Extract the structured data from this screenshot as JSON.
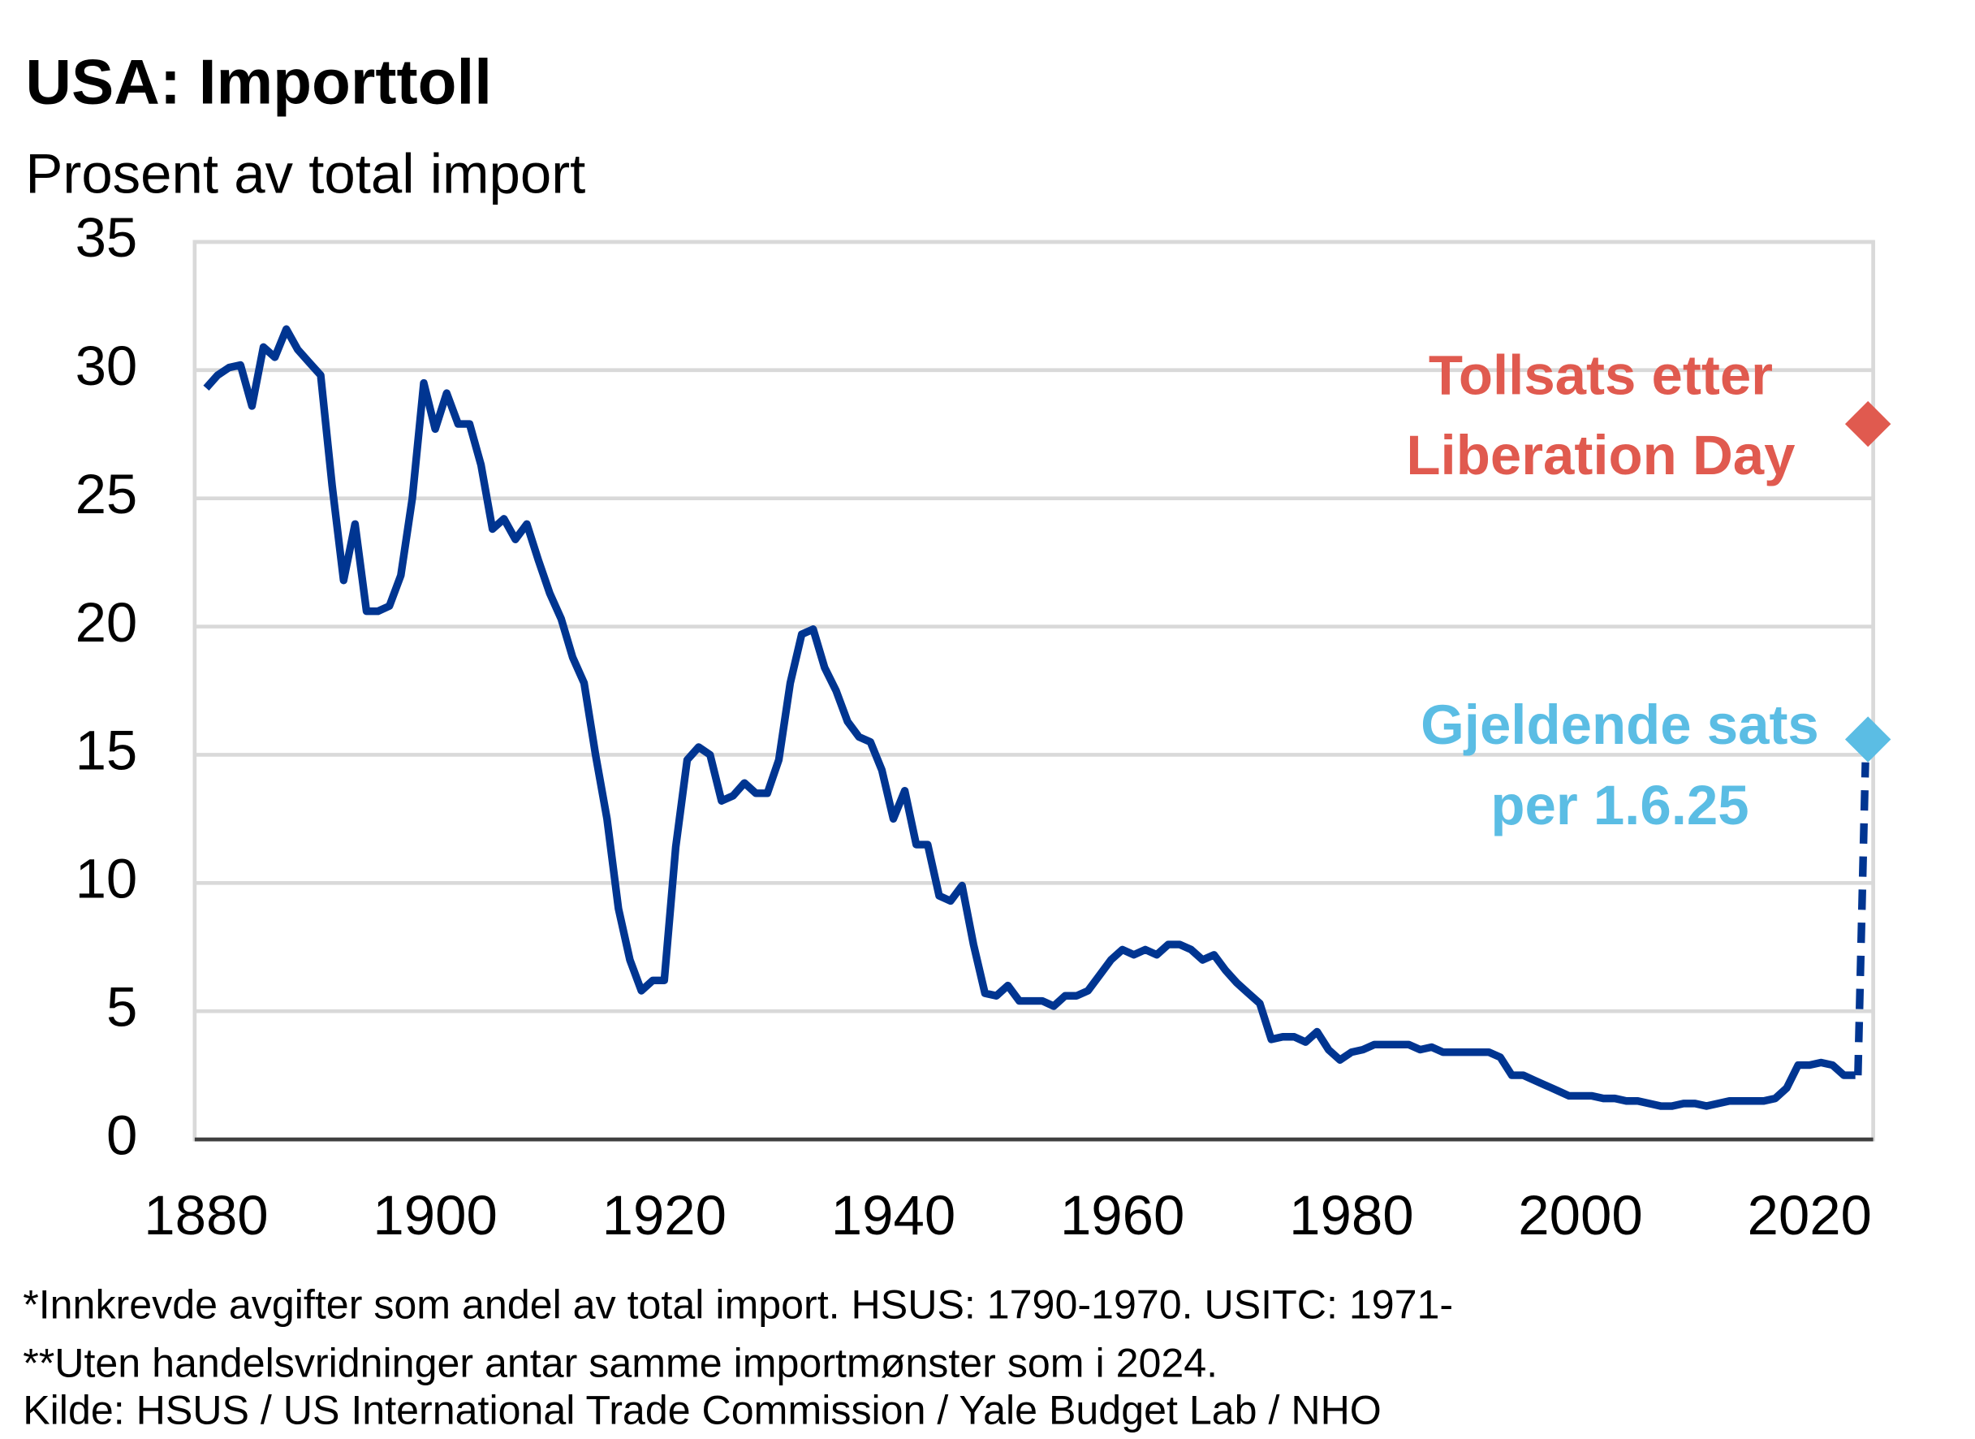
{
  "chart_data": {
    "type": "line",
    "title": "USA:  Importtoll",
    "subtitle": "Prosent av total import",
    "x": [
      1880,
      1881,
      1882,
      1883,
      1884,
      1885,
      1886,
      1887,
      1888,
      1889,
      1890,
      1891,
      1892,
      1893,
      1894,
      1895,
      1896,
      1897,
      1898,
      1899,
      1900,
      1901,
      1902,
      1903,
      1904,
      1905,
      1906,
      1907,
      1908,
      1909,
      1910,
      1911,
      1912,
      1913,
      1914,
      1915,
      1916,
      1917,
      1918,
      1919,
      1920,
      1921,
      1922,
      1923,
      1924,
      1925,
      1926,
      1927,
      1928,
      1929,
      1930,
      1931,
      1932,
      1933,
      1934,
      1935,
      1936,
      1937,
      1938,
      1939,
      1940,
      1941,
      1942,
      1943,
      1944,
      1945,
      1946,
      1947,
      1948,
      1949,
      1950,
      1951,
      1952,
      1953,
      1954,
      1955,
      1956,
      1957,
      1958,
      1959,
      1960,
      1961,
      1962,
      1963,
      1964,
      1965,
      1966,
      1967,
      1968,
      1969,
      1970,
      1971,
      1972,
      1973,
      1974,
      1975,
      1976,
      1977,
      1978,
      1979,
      1980,
      1981,
      1982,
      1983,
      1984,
      1985,
      1986,
      1987,
      1988,
      1989,
      1990,
      1991,
      1992,
      1993,
      1994,
      1995,
      1996,
      1997,
      1998,
      1999,
      2000,
      2001,
      2002,
      2003,
      2004,
      2005,
      2006,
      2007,
      2008,
      2009,
      2010,
      2011,
      2012,
      2013,
      2014,
      2015,
      2016,
      2017,
      2018,
      2019,
      2020,
      2021,
      2022,
      2023,
      2024
    ],
    "series": [
      {
        "color": "#003591",
        "values": [
          29.3,
          29.8,
          30.1,
          30.2,
          28.6,
          30.9,
          30.5,
          31.6,
          30.8,
          30.3,
          29.8,
          25.5,
          21.8,
          24.0,
          20.6,
          20.6,
          20.8,
          22.0,
          25.0,
          29.5,
          27.7,
          29.1,
          27.9,
          27.9,
          26.3,
          23.8,
          24.2,
          23.4,
          24.0,
          22.6,
          21.3,
          20.3,
          18.8,
          17.8,
          15.0,
          12.5,
          9.0,
          7.0,
          5.8,
          6.2,
          6.2,
          11.4,
          14.8,
          15.3,
          15.0,
          13.2,
          13.4,
          13.9,
          13.5,
          13.5,
          14.8,
          17.8,
          19.7,
          19.9,
          18.4,
          17.5,
          16.3,
          15.7,
          15.5,
          14.4,
          12.5,
          13.6,
          11.5,
          11.5,
          9.5,
          9.3,
          9.9,
          7.6,
          5.7,
          5.6,
          6.0,
          5.4,
          5.4,
          5.4,
          5.2,
          5.6,
          5.6,
          5.8,
          6.4,
          7.0,
          7.4,
          7.2,
          7.4,
          7.2,
          7.6,
          7.6,
          7.4,
          7.0,
          7.2,
          6.6,
          6.1,
          5.7,
          5.3,
          3.9,
          4.0,
          4.0,
          3.8,
          4.2,
          3.5,
          3.1,
          3.4,
          3.5,
          3.7,
          3.7,
          3.7,
          3.7,
          3.5,
          3.6,
          3.4,
          3.4,
          3.4,
          3.4,
          3.4,
          3.2,
          2.5,
          2.5,
          2.3,
          2.1,
          1.9,
          1.7,
          1.7,
          1.7,
          1.6,
          1.6,
          1.5,
          1.5,
          1.4,
          1.3,
          1.3,
          1.4,
          1.4,
          1.3,
          1.4,
          1.5,
          1.5,
          1.5,
          1.5,
          1.6,
          2.0,
          2.9,
          2.9,
          3.0,
          2.9,
          2.5,
          2.5
        ]
      }
    ],
    "markers": [
      {
        "label": [
          "Tollsats etter",
          "Liberation Day"
        ],
        "x": 2025.1,
        "value": 27.9,
        "color": "#e05a4f"
      },
      {
        "label": [
          "Gjeldende sats",
          "per 1.6.25"
        ],
        "x": 2025.1,
        "value": 15.6,
        "color": "#5bbde4"
      }
    ],
    "xlim": [
      1879,
      2026
    ],
    "xticks": [
      1880,
      1900,
      1920,
      1940,
      1960,
      1980,
      2000,
      2020
    ],
    "ylim": [
      0,
      35
    ],
    "yticks": [
      0,
      5,
      10,
      15,
      20,
      25,
      30,
      35
    ],
    "grid": true,
    "footnotes": [
      "*Innkrevde avgifter som andel av total import. HSUS: 1790-1970. USITC: 1971-",
      "**Uten handelsvridninger antar samme importmønster som i 2024.",
      "Kilde: HSUS / US International Trade Commission / Yale Budget Lab / NHO"
    ]
  }
}
